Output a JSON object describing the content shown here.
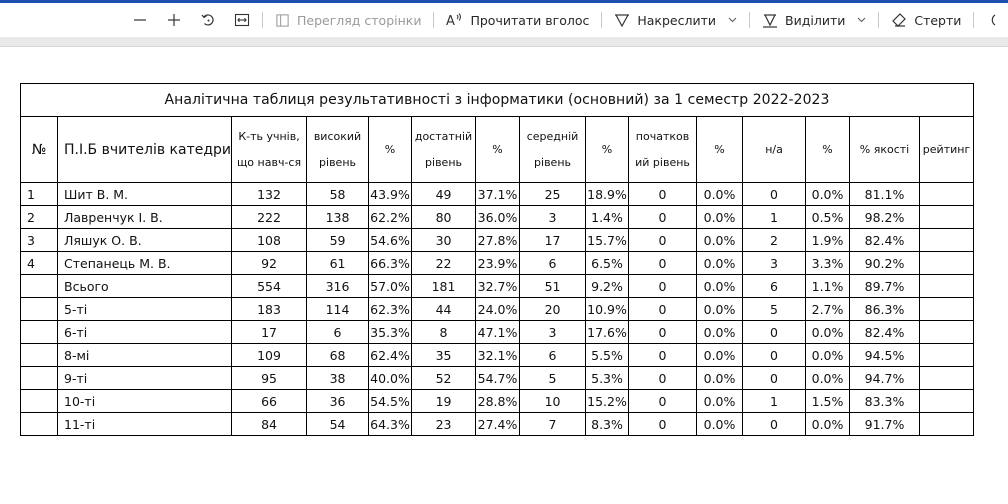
{
  "toolbar": {
    "zoom_out_icon": "minus-icon",
    "zoom_in_icon": "plus-icon",
    "rotate_icon": "rotate-icon",
    "fit_width_icon": "fit-width-icon",
    "page_view_label": "Перегляд сторінки",
    "read_aloud_label": "Прочитати вголос",
    "draw_label": "Накреслити",
    "highlight_label": "Виділити",
    "erase_label": "Стерти"
  },
  "table": {
    "title": "Аналітична таблиця результативності з  інформатики (основний) за 1 семестр 2022-2023",
    "headers": {
      "num": "№",
      "pib": "П.І.Б вчителів катедри",
      "students_l1": "К-ть учнів,",
      "students_l2": "що навч-ся",
      "high_l1": "високий",
      "high_l2": "рівень",
      "pct1": "%",
      "sufficient_l1": "достатній",
      "sufficient_l2": "рівень",
      "pct2": "%",
      "medium_l1": "середній",
      "medium_l2": "рівень",
      "pct3": "%",
      "initial_l1": "початков",
      "initial_l2": "ий рівень",
      "pct4": "%",
      "na": "н/а",
      "pct5": "%",
      "quality": "% якості",
      "rating": "рейтинг"
    },
    "rows": [
      [
        "1",
        "Шит В. М.",
        "132",
        "58",
        "43.9%",
        "49",
        "37.1%",
        "25",
        "18.9%",
        "0",
        "0.0%",
        "0",
        "0.0%",
        "81.1%",
        ""
      ],
      [
        "2",
        "Лавренчук І. В.",
        "222",
        "138",
        "62.2%",
        "80",
        "36.0%",
        "3",
        "1.4%",
        "0",
        "0.0%",
        "1",
        "0.5%",
        "98.2%",
        ""
      ],
      [
        "3",
        "Ляшук О. В.",
        "108",
        "59",
        "54.6%",
        "30",
        "27.8%",
        "17",
        "15.7%",
        "0",
        "0.0%",
        "2",
        "1.9%",
        "82.4%",
        ""
      ],
      [
        "4",
        "Степанець М. В.",
        "92",
        "61",
        "66.3%",
        "22",
        "23.9%",
        "6",
        "6.5%",
        "0",
        "0.0%",
        "3",
        "3.3%",
        "90.2%",
        ""
      ],
      [
        "",
        "Всього",
        "554",
        "316",
        "57.0%",
        "181",
        "32.7%",
        "51",
        "9.2%",
        "0",
        "0.0%",
        "6",
        "1.1%",
        "89.7%",
        ""
      ],
      [
        "",
        "5-ті",
        "183",
        "114",
        "62.3%",
        "44",
        "24.0%",
        "20",
        "10.9%",
        "0",
        "0.0%",
        "5",
        "2.7%",
        "86.3%",
        ""
      ],
      [
        "",
        "6-ті",
        "17",
        "6",
        "35.3%",
        "8",
        "47.1%",
        "3",
        "17.6%",
        "0",
        "0.0%",
        "0",
        "0.0%",
        "82.4%",
        ""
      ],
      [
        "",
        "8-мі",
        "109",
        "68",
        "62.4%",
        "35",
        "32.1%",
        "6",
        "5.5%",
        "0",
        "0.0%",
        "0",
        "0.0%",
        "94.5%",
        ""
      ],
      [
        "",
        "9-ті",
        "95",
        "38",
        "40.0%",
        "52",
        "54.7%",
        "5",
        "5.3%",
        "0",
        "0.0%",
        "0",
        "0.0%",
        "94.7%",
        ""
      ],
      [
        "",
        "10-ті",
        "66",
        "36",
        "54.5%",
        "19",
        "28.8%",
        "10",
        "15.2%",
        "0",
        "0.0%",
        "1",
        "1.5%",
        "83.3%",
        ""
      ],
      [
        "",
        "11-ті",
        "84",
        "54",
        "64.3%",
        "23",
        "27.4%",
        "7",
        "8.3%",
        "0",
        "0.0%",
        "0",
        "0.0%",
        "91.7%",
        ""
      ]
    ]
  }
}
